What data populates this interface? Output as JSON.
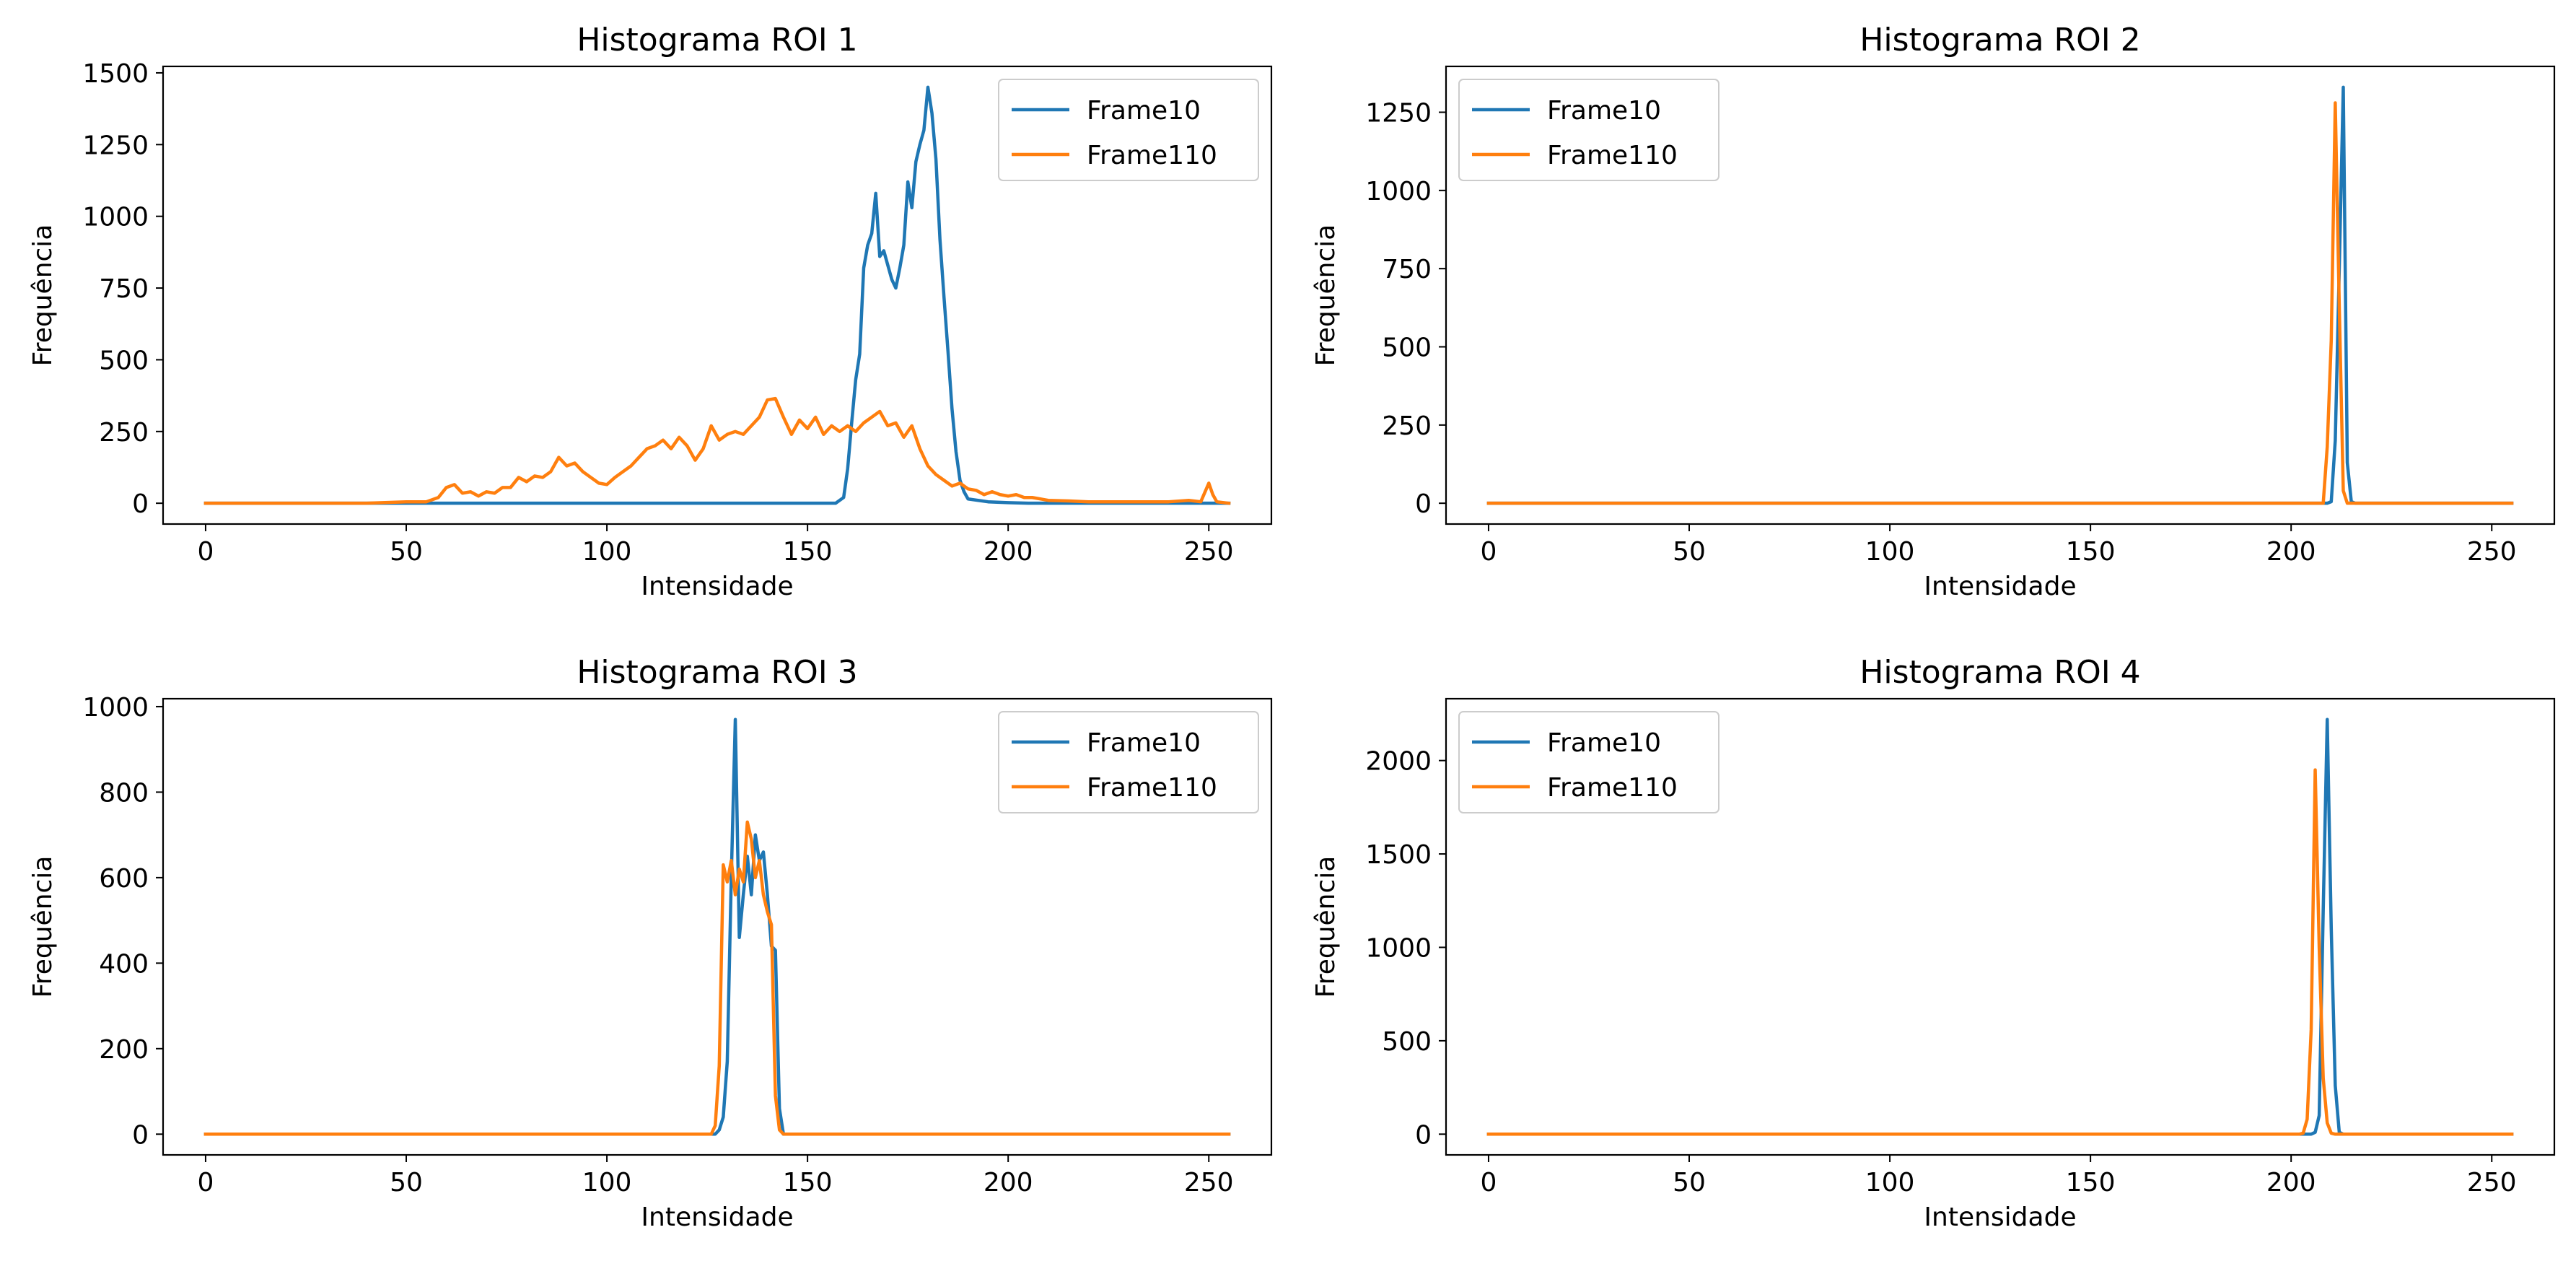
{
  "colors": {
    "frame10": "#1f77b4",
    "frame110": "#ff7f0e"
  },
  "chart_data": [
    {
      "type": "line",
      "title": "Histograma ROI 1",
      "xlabel": "Intensidade",
      "ylabel": "Frequência",
      "xlim": [
        -10.6,
        265.6
      ],
      "ylim": [
        -72.5,
        1522.5
      ],
      "xticks": [
        0,
        50,
        100,
        150,
        200,
        250
      ],
      "yticks": [
        0,
        250,
        500,
        750,
        1000,
        1250,
        1500
      ],
      "legend": "top-right",
      "grid": false,
      "series": [
        {
          "name": "Frame10",
          "color": "#1f77b4",
          "x": [
            0,
            157,
            159,
            160,
            161,
            162,
            163,
            164,
            165,
            166,
            167,
            168,
            169,
            170,
            171,
            172,
            173,
            174,
            175,
            176,
            177,
            178,
            179,
            180,
            181,
            182,
            183,
            184,
            185,
            186,
            187,
            188,
            189,
            190,
            195,
            200,
            205,
            255
          ],
          "y": [
            0,
            0,
            20,
            120,
            280,
            430,
            520,
            820,
            900,
            940,
            1080,
            860,
            880,
            830,
            780,
            750,
            820,
            900,
            1120,
            1030,
            1190,
            1250,
            1300,
            1450,
            1360,
            1200,
            920,
            720,
            530,
            330,
            180,
            80,
            40,
            15,
            5,
            2,
            0,
            0
          ]
        },
        {
          "name": "Frame110",
          "color": "#ff7f0e",
          "x": [
            0,
            40,
            50,
            55,
            58,
            60,
            62,
            64,
            66,
            68,
            70,
            72,
            74,
            76,
            78,
            80,
            82,
            84,
            86,
            88,
            90,
            92,
            94,
            96,
            98,
            100,
            102,
            104,
            106,
            108,
            110,
            112,
            114,
            116,
            118,
            120,
            122,
            124,
            126,
            128,
            130,
            132,
            134,
            136,
            138,
            140,
            142,
            144,
            146,
            148,
            150,
            152,
            154,
            156,
            158,
            160,
            162,
            164,
            166,
            168,
            170,
            172,
            174,
            176,
            178,
            180,
            182,
            184,
            186,
            188,
            190,
            192,
            194,
            196,
            198,
            200,
            202,
            204,
            206,
            208,
            210,
            215,
            220,
            230,
            240,
            245,
            248,
            250,
            251,
            252,
            255
          ],
          "y": [
            0,
            0,
            5,
            5,
            20,
            55,
            65,
            35,
            40,
            25,
            40,
            35,
            55,
            55,
            90,
            75,
            95,
            90,
            110,
            160,
            130,
            140,
            110,
            90,
            70,
            65,
            90,
            110,
            130,
            160,
            190,
            200,
            220,
            190,
            230,
            200,
            150,
            190,
            270,
            220,
            240,
            250,
            240,
            270,
            300,
            360,
            365,
            300,
            240,
            290,
            260,
            300,
            240,
            270,
            250,
            270,
            250,
            280,
            300,
            320,
            270,
            280,
            230,
            270,
            190,
            130,
            100,
            80,
            60,
            70,
            50,
            45,
            30,
            40,
            30,
            25,
            30,
            20,
            20,
            15,
            10,
            8,
            5,
            5,
            5,
            10,
            5,
            70,
            30,
            5,
            0
          ]
        }
      ]
    },
    {
      "type": "line",
      "title": "Histograma ROI 2",
      "xlabel": "Intensidade",
      "ylabel": "Frequência",
      "xlim": [
        -10.6,
        265.6
      ],
      "ylim": [
        -66.5,
        1396.5
      ],
      "xticks": [
        0,
        50,
        100,
        150,
        200,
        250
      ],
      "yticks": [
        0,
        250,
        500,
        750,
        1000,
        1250
      ],
      "legend": "top-left",
      "grid": false,
      "series": [
        {
          "name": "Frame10",
          "color": "#1f77b4",
          "x": [
            0,
            209,
            210,
            211,
            212,
            213,
            214,
            215,
            216,
            255
          ],
          "y": [
            0,
            0,
            5,
            200,
            750,
            1330,
            130,
            5,
            0,
            0
          ]
        },
        {
          "name": "Frame110",
          "color": "#ff7f0e",
          "x": [
            0,
            208,
            209,
            210,
            211,
            212,
            213,
            214,
            255
          ],
          "y": [
            0,
            0,
            180,
            520,
            1280,
            630,
            40,
            0,
            0
          ]
        }
      ]
    },
    {
      "type": "line",
      "title": "Histograma ROI 3",
      "xlabel": "Intensidade",
      "ylabel": "Frequência",
      "xlim": [
        -10.6,
        265.6
      ],
      "ylim": [
        -48.5,
        1018.5
      ],
      "xticks": [
        0,
        50,
        100,
        150,
        200,
        250
      ],
      "yticks": [
        0,
        200,
        400,
        600,
        800,
        1000
      ],
      "legend": "top-right",
      "grid": false,
      "series": [
        {
          "name": "Frame10",
          "color": "#1f77b4",
          "x": [
            0,
            127,
            128,
            129,
            130,
            131,
            132,
            133,
            134,
            135,
            136,
            137,
            138,
            139,
            140,
            141,
            142,
            143,
            144,
            145,
            255
          ],
          "y": [
            0,
            0,
            10,
            40,
            170,
            600,
            970,
            460,
            560,
            650,
            560,
            700,
            640,
            660,
            560,
            440,
            430,
            60,
            0,
            0,
            0
          ]
        },
        {
          "name": "Frame110",
          "color": "#ff7f0e",
          "x": [
            0,
            126,
            127,
            128,
            129,
            130,
            131,
            132,
            133,
            134,
            135,
            136,
            137,
            138,
            139,
            140,
            141,
            142,
            143,
            144,
            255
          ],
          "y": [
            0,
            0,
            20,
            160,
            630,
            590,
            640,
            560,
            620,
            590,
            730,
            690,
            600,
            640,
            560,
            520,
            490,
            90,
            10,
            0,
            0
          ]
        }
      ]
    },
    {
      "type": "line",
      "title": "Histograma ROI 4",
      "xlabel": "Intensidade",
      "ylabel": "Frequência",
      "xlim": [
        -10.6,
        265.6
      ],
      "ylim": [
        -111,
        2331
      ],
      "xticks": [
        0,
        50,
        100,
        150,
        200,
        250
      ],
      "yticks": [
        0,
        500,
        1000,
        1500,
        2000
      ],
      "legend": "top-left",
      "grid": false,
      "series": [
        {
          "name": "Frame10",
          "color": "#1f77b4",
          "x": [
            0,
            205,
            206,
            207,
            208,
            209,
            210,
            211,
            212,
            213,
            255
          ],
          "y": [
            0,
            0,
            10,
            100,
            1200,
            2220,
            1100,
            260,
            10,
            0,
            0
          ]
        },
        {
          "name": "Frame110",
          "color": "#ff7f0e",
          "x": [
            0,
            202,
            203,
            204,
            205,
            206,
            207,
            208,
            209,
            210,
            211,
            255
          ],
          "y": [
            0,
            0,
            5,
            80,
            560,
            1950,
            1000,
            300,
            60,
            5,
            0,
            0
          ]
        }
      ]
    }
  ]
}
